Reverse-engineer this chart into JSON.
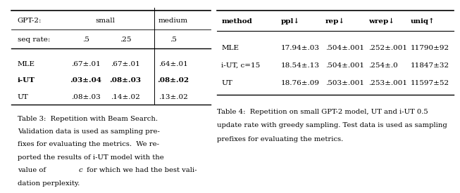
{
  "table3": {
    "header_row0": [
      "GPT-2:",
      "small",
      "",
      "medium"
    ],
    "header_row1": [
      "seq rate:",
      ".5",
      ".25",
      ".5"
    ],
    "rows": [
      [
        "MLE",
        ".67±.01",
        ".67±.01",
        ".64±.01"
      ],
      [
        "i-UT",
        ".03±.04",
        ".08±.03",
        ".08±.02"
      ],
      [
        "UT",
        ".08±.03",
        ".14±.02",
        ".13±.02"
      ]
    ],
    "bold_rows": [
      1
    ],
    "caption": "Table 3:  Repetition with Beam Search.\nValidation data is used as sampling pre-\nfixes for evaluating the metrics.  We re-\nported the results of i-UT model with the\nvalue of c for which we had the best vali-\ndation perplexity."
  },
  "table4": {
    "headers": [
      "method",
      "ppl↓",
      "rep↓",
      "wrep↓",
      "uniq↑"
    ],
    "rows": [
      [
        "MLE",
        "17.94±.03",
        ".504±.001",
        ".252±.001",
        "11790±92"
      ],
      [
        "i-UT, c=15",
        "18.54±.13",
        ".504±.001",
        ".254±.0",
        "11847±32"
      ],
      [
        "UT",
        "18.76±.09",
        ".503±.001",
        ".253±.001",
        "11597±52"
      ]
    ],
    "caption": "Table 4:  Repetition on small GPT-2 model, UT and i-UT 0.5\nupdate rate with greedy sampling. Test data is used as sampling\nprefixes for evaluating the metrics."
  },
  "bg_color": "#ffffff",
  "font_size": 7.5,
  "caption_font_size": 7.2
}
